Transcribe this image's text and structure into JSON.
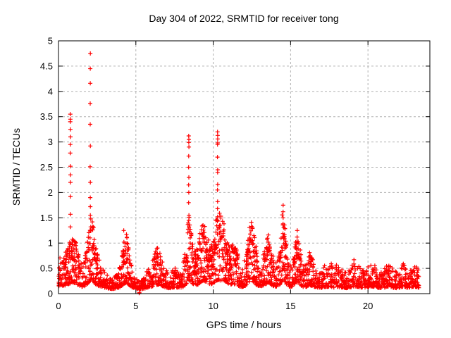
{
  "window": {
    "background": "#ffffff"
  },
  "chart_data": {
    "type": "scatter",
    "title": "Day 304 of 2022, SRMTID for receiver tong",
    "xlabel": "GPS time / hours",
    "ylabel": "SRMTID / TECUs",
    "xlim": [
      0,
      24
    ],
    "ylim": [
      0,
      5
    ],
    "xticks": {
      "values": [
        0,
        5,
        10,
        15,
        20
      ],
      "labels": [
        "0",
        "5",
        "10",
        "15",
        "20"
      ]
    },
    "yticks": {
      "values": [
        0,
        0.5,
        1,
        1.5,
        2,
        2.5,
        3,
        3.5,
        4,
        4.5,
        5
      ],
      "labels": [
        "0",
        "0.5",
        "1",
        "1.5",
        "2",
        "2.5",
        "3",
        "3.5",
        "4",
        "4.5",
        "5"
      ]
    },
    "grid": "dashed-both-axes",
    "legend": "none",
    "marker": {
      "shape": "plus",
      "color": "#ff0000",
      "size": 7
    },
    "colors": {
      "marker": "#ff0000",
      "grid": "#b0b0b0",
      "axis": "#000000",
      "text": "#000000",
      "background": "#ffffff"
    },
    "x_data_range": [
      0,
      23.3
    ],
    "envelope_note": "upper edge of the dense scatter band, read off the plot as [GPS hour, SRMTID TECUs]",
    "envelope": [
      [
        0.0,
        0.7
      ],
      [
        0.2,
        0.72
      ],
      [
        0.4,
        0.78
      ],
      [
        0.6,
        0.95
      ],
      [
        0.8,
        1.1
      ],
      [
        1.0,
        1.15
      ],
      [
        1.15,
        1.02
      ],
      [
        1.3,
        0.82
      ],
      [
        1.5,
        0.6
      ],
      [
        1.7,
        0.7
      ],
      [
        1.9,
        1.1
      ],
      [
        2.0,
        1.4
      ],
      [
        2.1,
        1.5
      ],
      [
        2.25,
        1.42
      ],
      [
        2.4,
        1.0
      ],
      [
        2.6,
        0.72
      ],
      [
        2.8,
        0.55
      ],
      [
        3.0,
        0.48
      ],
      [
        3.2,
        0.38
      ],
      [
        3.5,
        0.3
      ],
      [
        3.8,
        0.4
      ],
      [
        4.0,
        0.6
      ],
      [
        4.2,
        0.95
      ],
      [
        4.4,
        1.2
      ],
      [
        4.6,
        0.75
      ],
      [
        4.8,
        0.45
      ],
      [
        5.0,
        0.32
      ],
      [
        5.3,
        0.26
      ],
      [
        5.6,
        0.35
      ],
      [
        5.8,
        0.55
      ],
      [
        6.0,
        0.62
      ],
      [
        6.2,
        0.8
      ],
      [
        6.45,
        0.95
      ],
      [
        6.6,
        0.82
      ],
      [
        6.8,
        0.58
      ],
      [
        7.0,
        0.45
      ],
      [
        7.2,
        0.42
      ],
      [
        7.5,
        0.56
      ],
      [
        7.7,
        0.5
      ],
      [
        8.0,
        0.52
      ],
      [
        8.2,
        0.85
      ],
      [
        8.35,
        1.4
      ],
      [
        8.45,
        1.55
      ],
      [
        8.6,
        1.15
      ],
      [
        8.8,
        0.85
      ],
      [
        9.0,
        0.9
      ],
      [
        9.2,
        1.3
      ],
      [
        9.4,
        1.55
      ],
      [
        9.55,
        1.25
      ],
      [
        9.8,
        0.95
      ],
      [
        10.0,
        1.05
      ],
      [
        10.2,
        1.5
      ],
      [
        10.35,
        1.65
      ],
      [
        10.5,
        1.6
      ],
      [
        10.7,
        1.4
      ],
      [
        10.9,
        1.15
      ],
      [
        11.1,
        0.95
      ],
      [
        11.3,
        1.0
      ],
      [
        11.5,
        0.9
      ],
      [
        11.7,
        0.65
      ],
      [
        11.9,
        0.6
      ],
      [
        12.1,
        0.75
      ],
      [
        12.3,
        1.2
      ],
      [
        12.45,
        1.55
      ],
      [
        12.6,
        1.3
      ],
      [
        12.8,
        0.85
      ],
      [
        13.0,
        0.6
      ],
      [
        13.2,
        0.7
      ],
      [
        13.4,
        1.0
      ],
      [
        13.6,
        1.2
      ],
      [
        13.8,
        0.85
      ],
      [
        14.0,
        0.6
      ],
      [
        14.2,
        0.7
      ],
      [
        14.4,
        1.2
      ],
      [
        14.5,
        1.75
      ],
      [
        14.65,
        1.3
      ],
      [
        14.8,
        0.75
      ],
      [
        15.0,
        0.6
      ],
      [
        15.2,
        0.8
      ],
      [
        15.4,
        1.25
      ],
      [
        15.6,
        0.95
      ],
      [
        15.8,
        0.6
      ],
      [
        16.0,
        0.55
      ],
      [
        16.2,
        0.85
      ],
      [
        16.35,
        0.78
      ],
      [
        16.6,
        0.55
      ],
      [
        16.8,
        0.45
      ],
      [
        17.0,
        0.46
      ],
      [
        17.2,
        0.6
      ],
      [
        17.4,
        0.5
      ],
      [
        17.6,
        0.62
      ],
      [
        17.8,
        0.5
      ],
      [
        18.0,
        0.6
      ],
      [
        18.3,
        0.5
      ],
      [
        18.6,
        0.42
      ],
      [
        18.9,
        0.55
      ],
      [
        19.1,
        0.7
      ],
      [
        19.3,
        0.6
      ],
      [
        19.6,
        0.48
      ],
      [
        19.9,
        0.52
      ],
      [
        20.1,
        0.56
      ],
      [
        20.3,
        0.64
      ],
      [
        20.5,
        0.55
      ],
      [
        20.7,
        0.46
      ],
      [
        20.9,
        0.42
      ],
      [
        21.1,
        0.52
      ],
      [
        21.3,
        0.6
      ],
      [
        21.5,
        0.54
      ],
      [
        21.7,
        0.45
      ],
      [
        21.9,
        0.42
      ],
      [
        22.1,
        0.52
      ],
      [
        22.3,
        0.6
      ],
      [
        22.5,
        0.5
      ],
      [
        22.7,
        0.46
      ],
      [
        22.9,
        0.52
      ],
      [
        23.05,
        0.62
      ],
      [
        23.2,
        0.55
      ],
      [
        23.3,
        0.45
      ]
    ],
    "spike_columns_note": "isolated tall columns of + markers: x = GPS hour, values = SRMTID TECUs",
    "spike_columns": [
      {
        "x": 0.77,
        "values": [
          3.55,
          3.45,
          3.4,
          3.25,
          3.1,
          2.95,
          2.78,
          2.52,
          2.35,
          2.2,
          1.92,
          1.57,
          1.32
        ]
      },
      {
        "x": 2.05,
        "values": [
          4.75,
          4.45,
          4.16,
          3.76,
          3.35,
          2.92,
          2.51,
          2.2,
          1.9,
          1.72,
          1.55
        ]
      },
      {
        "x": 4.22,
        "values": [
          1.25,
          1.02,
          0.85,
          0.62
        ]
      },
      {
        "x": 8.42,
        "values": [
          3.12,
          3.05,
          2.99,
          2.9,
          2.72,
          2.5,
          2.3,
          2.15,
          2.0,
          1.8,
          1.55,
          1.45
        ]
      },
      {
        "x": 10.28,
        "values": [
          3.2,
          3.13,
          3.06,
          2.98,
          2.95,
          2.7,
          2.45,
          2.4,
          2.16,
          2.05,
          1.82,
          1.68,
          1.52,
          1.45
        ]
      },
      {
        "x": 14.52,
        "values": [
          1.75,
          1.62,
          1.5,
          1.38
        ]
      },
      {
        "x": 15.42,
        "values": [
          1.25,
          1.12,
          1.0
        ]
      },
      {
        "x": 5.22,
        "values": [
          0.02,
          0.01
        ]
      }
    ],
    "baseline_floor": 0.05
  }
}
